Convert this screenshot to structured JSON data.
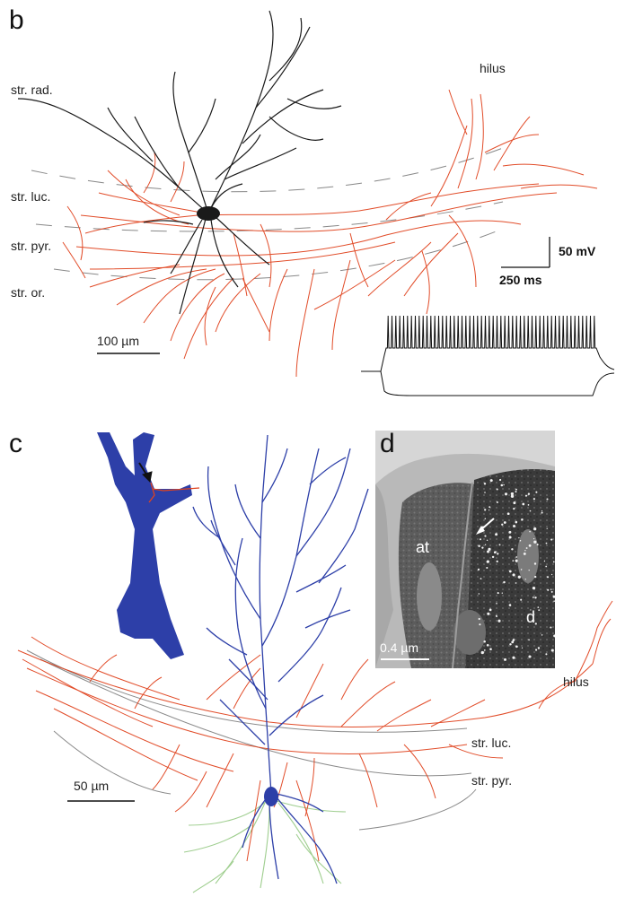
{
  "panel_b": {
    "letter": "b",
    "layers": {
      "rad": "str. rad.",
      "luc": "str. luc.",
      "pyr": "str. pyr.",
      "or": "str. or.",
      "hilus": "hilus"
    },
    "scale_bar": "100 µm",
    "ephys": {
      "voltage": "50 mV",
      "time": "250 ms"
    }
  },
  "panel_c": {
    "letter": "c",
    "layers": {
      "hilus": "hilus",
      "luc": "str. luc.",
      "pyr": "str. pyr."
    },
    "scale_bar": "50 µm"
  },
  "panel_d": {
    "letter": "d",
    "labels": {
      "at": "at",
      "d": "d"
    },
    "scale_bar": "0.4 µm"
  },
  "colors": {
    "axon": "#e0431e",
    "dendrite_black": "#1a1a1a",
    "dendrite_blue": "#2d3fa8",
    "basal_green": "#9fce8f",
    "layer_line": "#9a9a9a"
  }
}
